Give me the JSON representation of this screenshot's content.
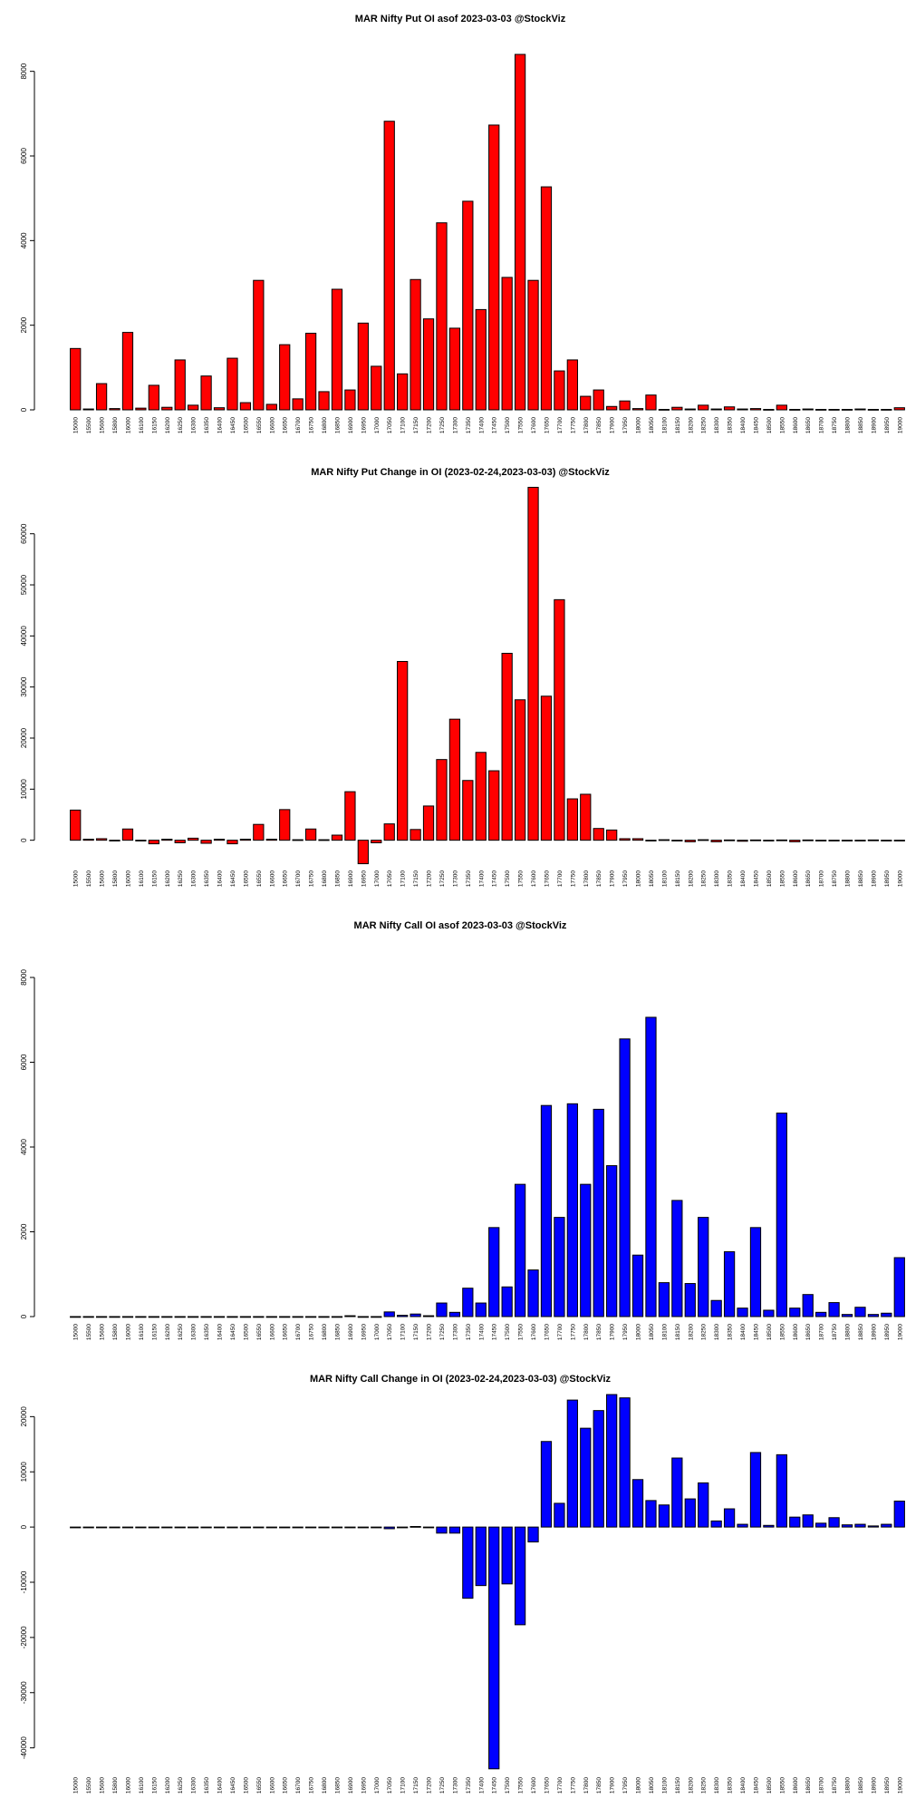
{
  "colors": {
    "put": "#ff0000",
    "call": "#0000ff",
    "edge": "#000000",
    "background": "#ffffff"
  },
  "strike_labels": [
    "15000",
    "15500",
    "15600",
    "15800",
    "16000",
    "16100",
    "16150",
    "16200",
    "16250",
    "16300",
    "16350",
    "16400",
    "16450",
    "16500",
    "16550",
    "16600",
    "16650",
    "16700",
    "16750",
    "16800",
    "16850",
    "16900",
    "16950",
    "17000",
    "17050",
    "17100",
    "17150",
    "17200",
    "17250",
    "17300",
    "17350",
    "17400",
    "17450",
    "17500",
    "17550",
    "17600",
    "17650",
    "17700",
    "17750",
    "17800",
    "17850",
    "17900",
    "17950",
    "18000",
    "18050",
    "18100",
    "18150",
    "18200",
    "18250",
    "18300",
    "18350",
    "18400",
    "18450",
    "18500",
    "18550",
    "18600",
    "18650",
    "18700",
    "18750",
    "18800",
    "18850",
    "18900",
    "18950",
    "19000"
  ],
  "chart_data": [
    {
      "id": "put-oi",
      "type": "bar",
      "title": "MAR Nifty Put OI asof 2023-03-03 @StockViz",
      "xlabel": "",
      "ylabel": "",
      "ylim": [
        0,
        8400
      ],
      "yticks": [
        0,
        2000,
        4000,
        6000,
        8000
      ],
      "grid": false,
      "color": "#ff0000",
      "values": [
        1450,
        20,
        620,
        30,
        1830,
        40,
        580,
        60,
        1180,
        110,
        800,
        50,
        1220,
        170,
        3060,
        130,
        1540,
        260,
        1810,
        430,
        2850,
        470,
        2050,
        1030,
        6820,
        850,
        3080,
        2150,
        4420,
        1930,
        4930,
        2370,
        6730,
        3130,
        8400,
        3060,
        5270,
        920,
        1180,
        320,
        470,
        80,
        210,
        30,
        350,
        10,
        60,
        20,
        110,
        20,
        70,
        20,
        30,
        10,
        110,
        10,
        20,
        10,
        10,
        10,
        20,
        10,
        10,
        50
      ]
    },
    {
      "id": "put-change",
      "type": "bar",
      "title": "MAR Nifty Put Change in OI (2023-02-24,2023-03-03) @StockViz",
      "xlabel": "",
      "ylabel": "",
      "ylim": [
        -4500,
        69000
      ],
      "yticks": [
        0,
        10000,
        20000,
        30000,
        40000,
        50000,
        60000
      ],
      "grid": false,
      "color": "#ff0000",
      "values": [
        5900,
        200,
        300,
        -100,
        2200,
        -100,
        -700,
        200,
        -500,
        400,
        -600,
        200,
        -700,
        200,
        3100,
        200,
        6000,
        100,
        2200,
        100,
        1000,
        9500,
        -4600,
        -500,
        3200,
        35000,
        2100,
        6700,
        15800,
        23700,
        11700,
        17200,
        13600,
        36600,
        27500,
        69100,
        28200,
        47100,
        8100,
        9000,
        2300,
        2000,
        300,
        300,
        -100,
        100,
        -100,
        -300,
        100,
        -300,
        50,
        -200,
        50,
        -100,
        50,
        -300,
        50,
        -50,
        0,
        -50,
        0,
        50,
        0,
        -50
      ]
    },
    {
      "id": "call-oi",
      "type": "bar",
      "title": "MAR Nifty Call OI asof 2023-03-03 @StockViz",
      "xlabel": "",
      "ylabel": "",
      "ylim": [
        0,
        8000
      ],
      "yticks": [
        0,
        2000,
        4000,
        6000,
        8000
      ],
      "grid": false,
      "color": "#0000ff",
      "values": [
        0,
        0,
        0,
        0,
        0,
        0,
        0,
        0,
        0,
        0,
        0,
        0,
        0,
        0,
        0,
        0,
        0,
        0,
        0,
        0,
        0,
        20,
        0,
        0,
        110,
        30,
        60,
        20,
        320,
        100,
        670,
        320,
        2100,
        700,
        3120,
        1100,
        4980,
        2340,
        5020,
        3120,
        4890,
        3560,
        6550,
        1450,
        7060,
        800,
        2740,
        780,
        2340,
        380,
        1530,
        200,
        2100,
        150,
        4800,
        200,
        520,
        100,
        330,
        50,
        220,
        50,
        80,
        1390
      ]
    },
    {
      "id": "call-change",
      "type": "bar",
      "title": "MAR Nifty Call Change in OI (2023-02-24,2023-03-03) @StockViz",
      "xlabel": "",
      "ylabel": "",
      "ylim": [
        -44000,
        24000
      ],
      "yticks": [
        -40000,
        -30000,
        -20000,
        -10000,
        0,
        10000,
        20000
      ],
      "grid": false,
      "color": "#0000ff",
      "values": [
        0,
        0,
        0,
        0,
        0,
        0,
        0,
        0,
        0,
        0,
        0,
        0,
        0,
        0,
        0,
        0,
        0,
        0,
        0,
        0,
        0,
        0,
        0,
        0,
        -300,
        -100,
        100,
        -50,
        -1100,
        -1100,
        -12900,
        -10600,
        -43800,
        -10300,
        -17700,
        -2700,
        15500,
        4300,
        23000,
        17900,
        21100,
        24000,
        23400,
        8600,
        4800,
        4000,
        12500,
        5100,
        8000,
        1100,
        3300,
        500,
        13500,
        300,
        13100,
        1800,
        2200,
        700,
        1700,
        400,
        500,
        200,
        500,
        4700
      ]
    }
  ]
}
